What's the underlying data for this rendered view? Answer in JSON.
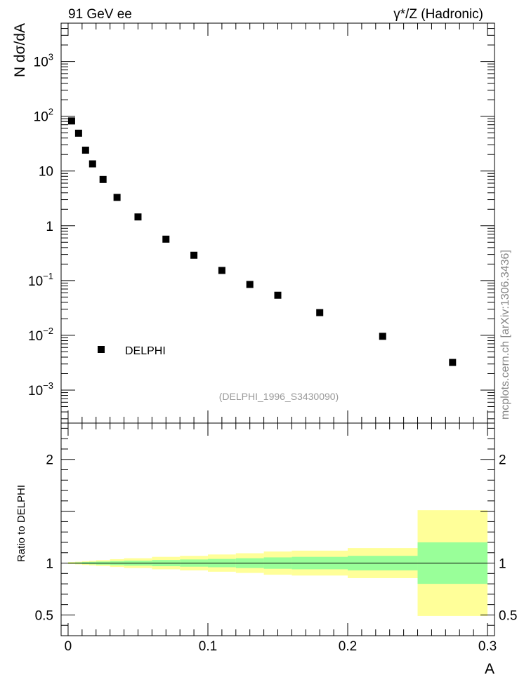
{
  "header": {
    "left_label": "91 GeV ee",
    "right_label": "γ*/Z (Hadronic)"
  },
  "watermark": "mcplots.cern.ch [arXiv:1306.3436]",
  "chart_data": [
    {
      "type": "scatter",
      "panel": "main",
      "ylabel": "N dσ/dA",
      "yscale": "log",
      "ylim": [
        0.00025,
        5000
      ],
      "xlim": [
        -0.005,
        0.305
      ],
      "y_ticks": [
        {
          "value": 0.001,
          "base": "10",
          "exp": "−3"
        },
        {
          "value": 0.01,
          "base": "10",
          "exp": "−2"
        },
        {
          "value": 0.1,
          "base": "10",
          "exp": "−1"
        },
        {
          "value": 1,
          "base": "1",
          "exp": ""
        },
        {
          "value": 10,
          "base": "10",
          "exp": ""
        },
        {
          "value": 100,
          "base": "10",
          "exp": "2"
        },
        {
          "value": 1000,
          "base": "10",
          "exp": "3"
        }
      ],
      "legend_position": "lower-left",
      "reference_label": "(DELPHI_1996_S3430090)",
      "series": [
        {
          "name": "DELPHI",
          "marker": "square",
          "color": "#000000",
          "x": [
            0.0025,
            0.0075,
            0.0125,
            0.0175,
            0.025,
            0.035,
            0.05,
            0.07,
            0.09,
            0.11,
            0.13,
            0.15,
            0.18,
            0.225,
            0.275
          ],
          "y": [
            82,
            49,
            24,
            13.5,
            7,
            3.3,
            1.45,
            0.57,
            0.29,
            0.153,
            0.085,
            0.054,
            0.026,
            0.0096,
            0.0032
          ]
        }
      ]
    },
    {
      "type": "area",
      "panel": "ratio",
      "ylabel": "Ratio to DELPHI",
      "xlabel": "A",
      "ylim": [
        0.3,
        2.35
      ],
      "xlim": [
        -0.005,
        0.305
      ],
      "y_ticks": [
        "0.5",
        "1",
        "2"
      ],
      "x_ticks": [
        "0",
        "0.1",
        "0.2",
        "0.3"
      ],
      "colors": {
        "inner": "#99ff99",
        "outer": "#ffff99",
        "line": "#000000"
      },
      "bins": [
        {
          "lo": 0.0,
          "hi": 0.005,
          "inner": [
            0.995,
            1.005
          ],
          "outer": [
            0.99,
            1.01
          ]
        },
        {
          "lo": 0.005,
          "hi": 0.01,
          "inner": [
            0.993,
            1.007
          ],
          "outer": [
            0.987,
            1.013
          ]
        },
        {
          "lo": 0.01,
          "hi": 0.015,
          "inner": [
            0.99,
            1.01
          ],
          "outer": [
            0.982,
            1.018
          ]
        },
        {
          "lo": 0.015,
          "hi": 0.02,
          "inner": [
            0.988,
            1.012
          ],
          "outer": [
            0.978,
            1.022
          ]
        },
        {
          "lo": 0.02,
          "hi": 0.03,
          "inner": [
            0.985,
            1.015
          ],
          "outer": [
            0.972,
            1.028
          ]
        },
        {
          "lo": 0.03,
          "hi": 0.04,
          "inner": [
            0.98,
            1.02
          ],
          "outer": [
            0.962,
            1.038
          ]
        },
        {
          "lo": 0.04,
          "hi": 0.06,
          "inner": [
            0.976,
            1.024
          ],
          "outer": [
            0.953,
            1.047
          ]
        },
        {
          "lo": 0.06,
          "hi": 0.08,
          "inner": [
            0.97,
            1.03
          ],
          "outer": [
            0.94,
            1.06
          ]
        },
        {
          "lo": 0.08,
          "hi": 0.1,
          "inner": [
            0.965,
            1.035
          ],
          "outer": [
            0.93,
            1.07
          ]
        },
        {
          "lo": 0.1,
          "hi": 0.12,
          "inner": [
            0.96,
            1.04
          ],
          "outer": [
            0.917,
            1.083
          ]
        },
        {
          "lo": 0.12,
          "hi": 0.14,
          "inner": [
            0.953,
            1.047
          ],
          "outer": [
            0.905,
            1.095
          ]
        },
        {
          "lo": 0.14,
          "hi": 0.16,
          "inner": [
            0.945,
            1.055
          ],
          "outer": [
            0.888,
            1.112
          ]
        },
        {
          "lo": 0.16,
          "hi": 0.2,
          "inner": [
            0.94,
            1.06
          ],
          "outer": [
            0.88,
            1.12
          ]
        },
        {
          "lo": 0.2,
          "hi": 0.25,
          "inner": [
            0.93,
            1.07
          ],
          "outer": [
            0.855,
            1.145
          ]
        },
        {
          "lo": 0.25,
          "hi": 0.3,
          "inner": [
            0.8,
            1.2
          ],
          "outer": [
            0.49,
            1.51
          ]
        }
      ]
    }
  ]
}
